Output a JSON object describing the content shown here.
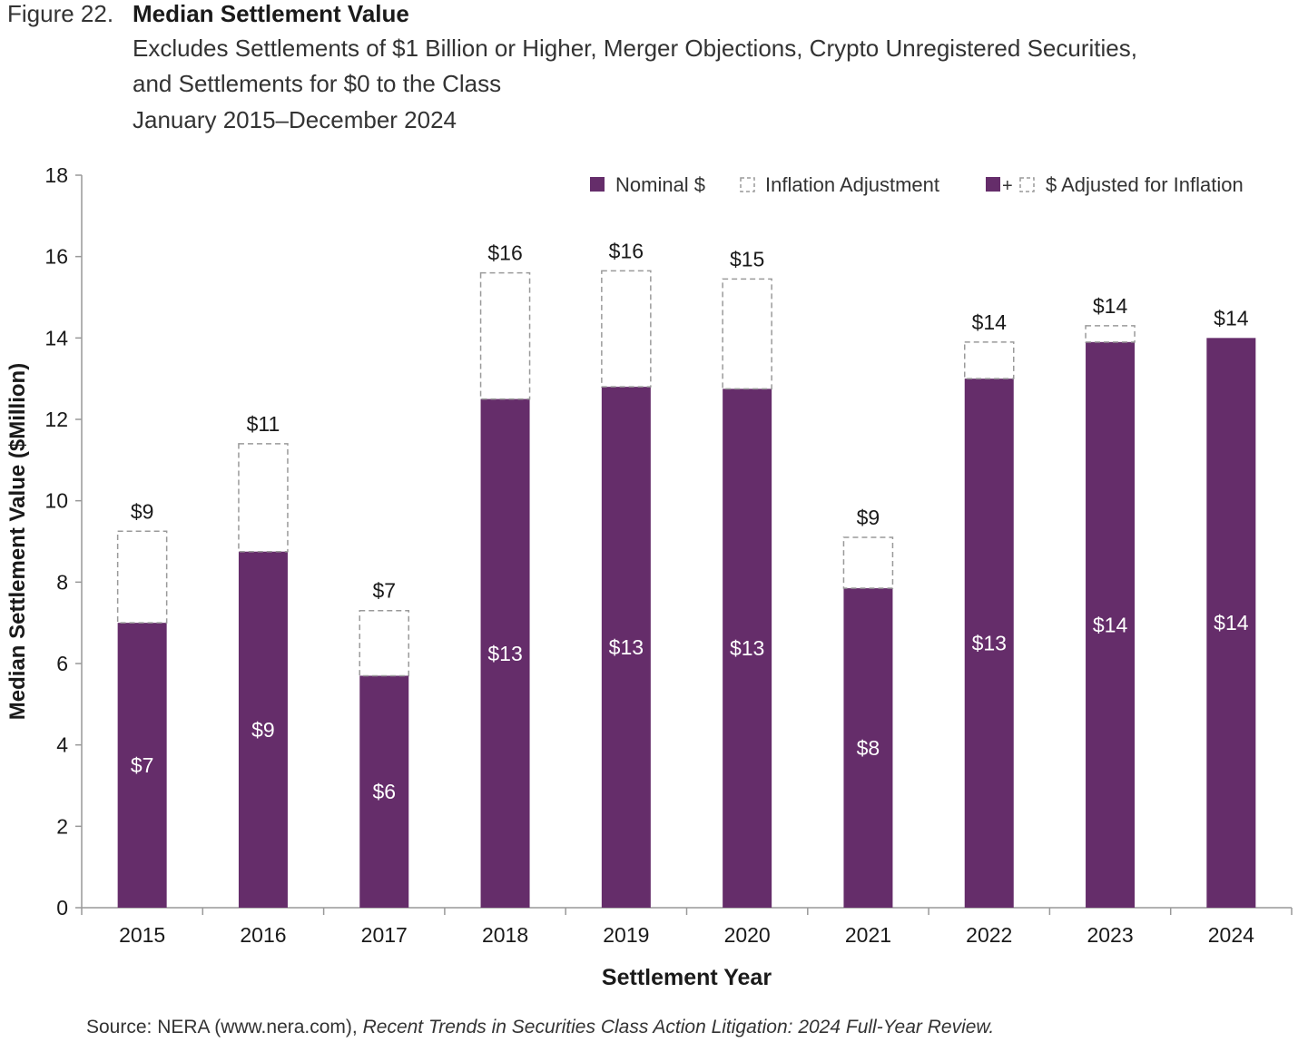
{
  "figure": {
    "label": "Figure 22.",
    "title": "Median Settlement Value",
    "subtitle_line1": "Excludes Settlements of $1 Billion or Higher, Merger Objections, Crypto Unregistered Securities,",
    "subtitle_line2": "and Settlements for $0 to the Class",
    "subtitle_line3": "January 2015–December 2024"
  },
  "source": {
    "prefix": "Source: NERA (www.nera.com), ",
    "italic": "Recent Trends in Securities Class Action Litigation: 2024 Full-Year Review."
  },
  "colors": {
    "bar": "#652d6a",
    "axis": "#999999",
    "dashed": "#9a9a9a"
  },
  "chart_data": {
    "type": "bar",
    "stacked": true,
    "categories": [
      "2015",
      "2016",
      "2017",
      "2018",
      "2019",
      "2020",
      "2021",
      "2022",
      "2023",
      "2024"
    ],
    "series": [
      {
        "name": "Nominal $",
        "values": [
          7.0,
          8.75,
          5.7,
          12.5,
          12.8,
          12.75,
          7.85,
          13.0,
          13.9,
          14.0
        ]
      },
      {
        "name": "Inflation Adjustment",
        "values": [
          2.25,
          2.65,
          1.6,
          3.1,
          2.85,
          2.7,
          1.25,
          0.9,
          0.4,
          0.0
        ]
      }
    ],
    "nominal_labels": [
      "$7",
      "$9",
      "$6",
      "$13",
      "$13",
      "$13",
      "$8",
      "$13",
      "$14",
      "$14"
    ],
    "total_labels": [
      "$9",
      "$11",
      "$7",
      "$16",
      "$16",
      "$15",
      "$9",
      "$14",
      "$14",
      "$14"
    ],
    "legend": [
      {
        "name": "Nominal $"
      },
      {
        "name": "Inflation Adjustment"
      },
      {
        "name": "$ Adjusted for Inflation",
        "symbol_joiner": "+"
      }
    ],
    "legend_position": "top-right",
    "xlabel": "Settlement Year",
    "ylabel": "Median Settlement Value ($Million)",
    "ylim": [
      0,
      18
    ],
    "yticks": [
      0,
      2,
      4,
      6,
      8,
      10,
      12,
      14,
      16,
      18
    ],
    "grid": false
  }
}
